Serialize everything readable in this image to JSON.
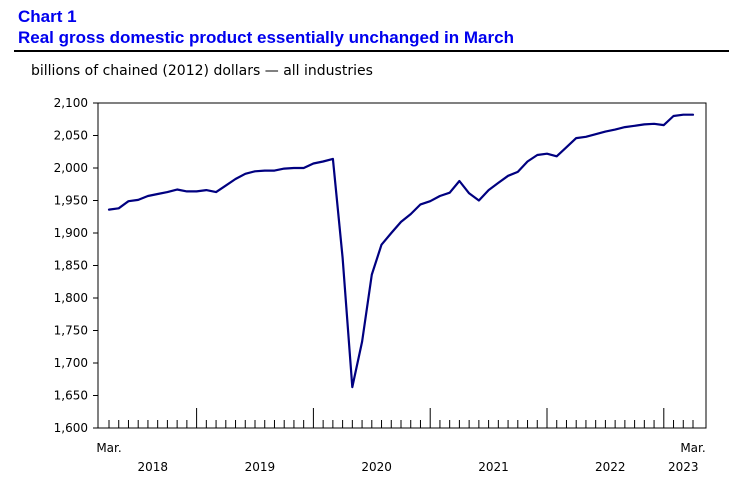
{
  "header": {
    "chart_label": "Chart 1",
    "title": "Real gross domestic product essentially unchanged in March"
  },
  "colors": {
    "title": "#0000ee",
    "line": "#000080",
    "axis": "#000000"
  },
  "chart_data": {
    "type": "line",
    "subtitle": "billions of chained (2012) dollars — all industries",
    "xlabel": "",
    "ylabel": "",
    "ylim": [
      1600,
      2100
    ],
    "yticks": [
      1600,
      1650,
      1700,
      1750,
      1800,
      1850,
      1900,
      1950,
      2000,
      2050,
      2100
    ],
    "ytick_labels": [
      "1,600",
      "1,650",
      "1,700",
      "1,750",
      "1,800",
      "1,850",
      "1,900",
      "1,950",
      "2,000",
      "2,050",
      "2,100"
    ],
    "grid": false,
    "legend": "none",
    "x_start_label": "Mar.",
    "x_end_label": "Mar.",
    "year_labels": [
      "2018",
      "2019",
      "2020",
      "2021",
      "2022",
      "2023"
    ],
    "series": [
      {
        "x": [
          "2018-03",
          "2018-04",
          "2018-05",
          "2018-06",
          "2018-07",
          "2018-08",
          "2018-09",
          "2018-10",
          "2018-11",
          "2018-12",
          "2019-01",
          "2019-02",
          "2019-03",
          "2019-04",
          "2019-05",
          "2019-06",
          "2019-07",
          "2019-08",
          "2019-09",
          "2019-10",
          "2019-11",
          "2019-12",
          "2020-01",
          "2020-02",
          "2020-03",
          "2020-04",
          "2020-05",
          "2020-06",
          "2020-07",
          "2020-08",
          "2020-09",
          "2020-10",
          "2020-11",
          "2020-12",
          "2021-01",
          "2021-02",
          "2021-03",
          "2021-04",
          "2021-05",
          "2021-06",
          "2021-07",
          "2021-08",
          "2021-09",
          "2021-10",
          "2021-11",
          "2021-12",
          "2022-01",
          "2022-02",
          "2022-03",
          "2022-04",
          "2022-05",
          "2022-06",
          "2022-07",
          "2022-08",
          "2022-09",
          "2022-10",
          "2022-11",
          "2022-12",
          "2023-01",
          "2023-02",
          "2023-03"
        ],
        "values": [
          1936,
          1938,
          1949,
          1951,
          1957,
          1960,
          1963,
          1967,
          1964,
          1964,
          1966,
          1963,
          1973,
          1983,
          1991,
          1995,
          1996,
          1996,
          1999,
          2000,
          2000,
          2007,
          2010,
          2014,
          1862,
          1663,
          1733,
          1836,
          1882,
          1900,
          1917,
          1929,
          1944,
          1949,
          1957,
          1962,
          1980,
          1961,
          1950,
          1966,
          1977,
          1988,
          1994,
          2010,
          2020,
          2022,
          2018,
          2032,
          2046,
          2048,
          2052,
          2056,
          2059,
          2063,
          2065,
          2067,
          2068,
          2066,
          2080,
          2082,
          2082
        ]
      }
    ]
  }
}
